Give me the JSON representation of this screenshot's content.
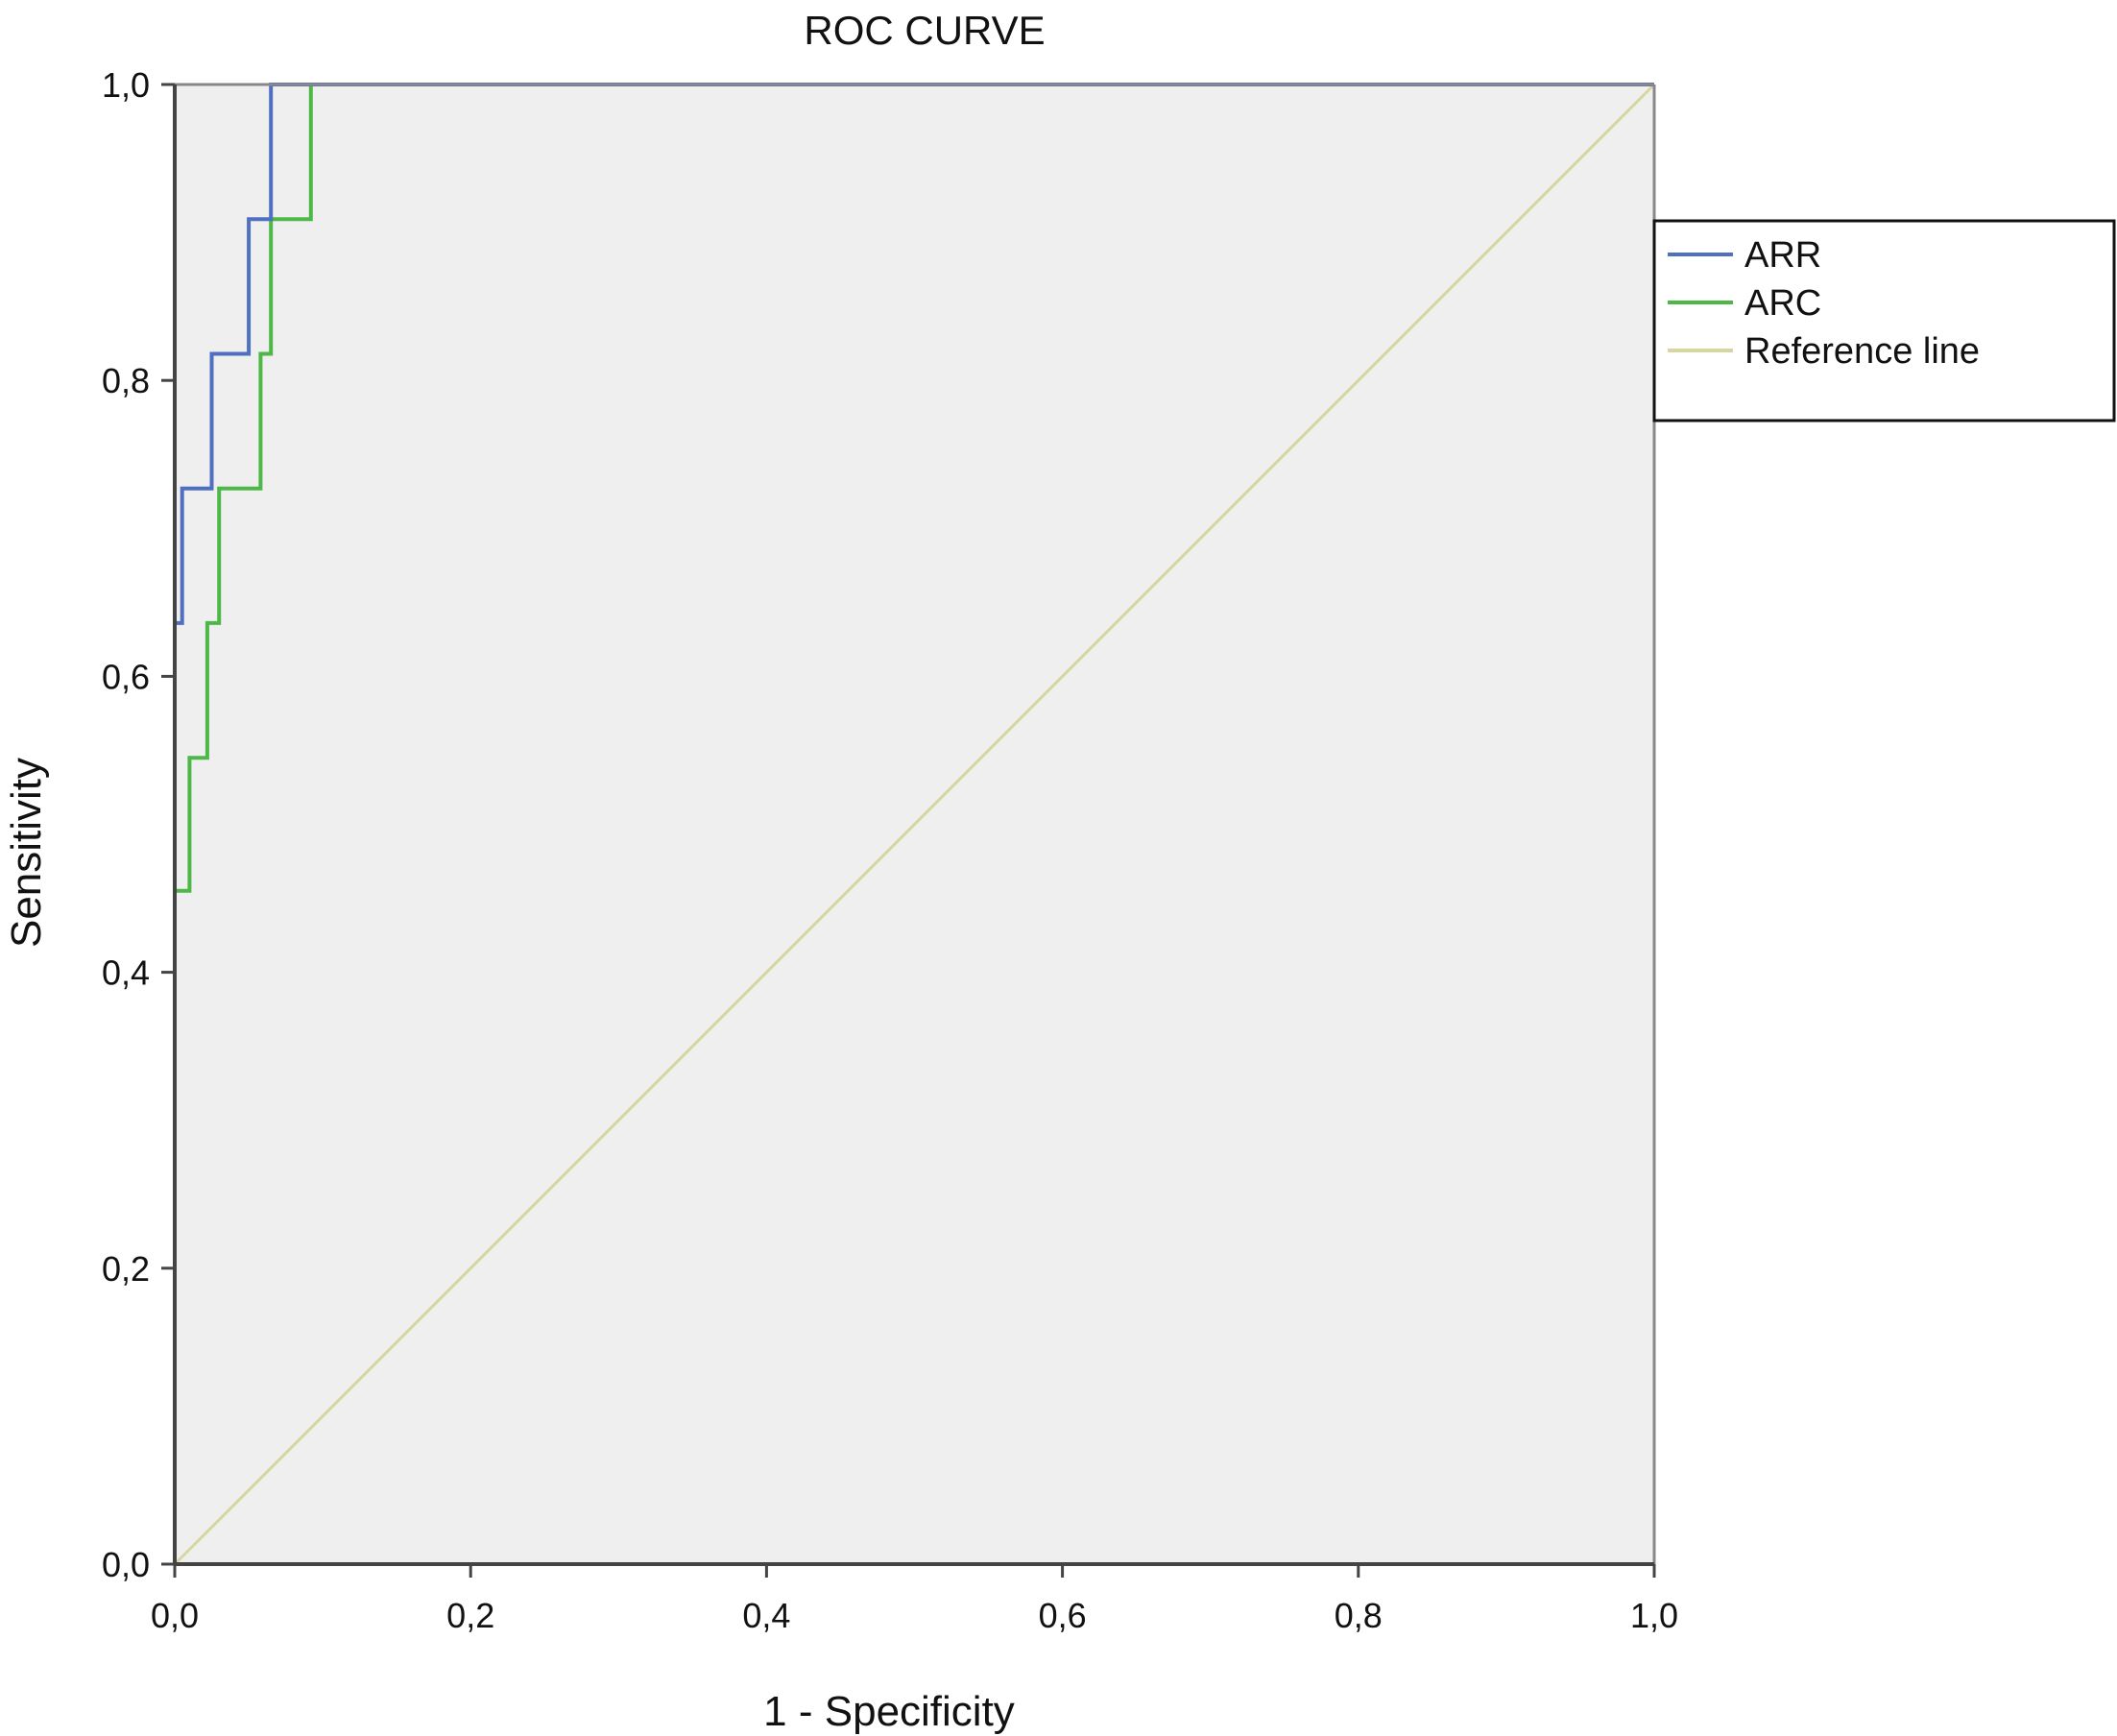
{
  "chart_data": {
    "type": "line",
    "title": "ROC CURVE",
    "xlabel": "1 - Specificity",
    "ylabel": "Sensitivity",
    "xlim": [
      0,
      1
    ],
    "ylim": [
      0,
      1
    ],
    "x_ticks": [
      "0,0",
      "0,2",
      "0,4",
      "0,6",
      "0,8",
      "1,0"
    ],
    "y_ticks": [
      "0,0",
      "0,2",
      "0,4",
      "0,6",
      "0,8",
      "1,0"
    ],
    "grid": false,
    "plot_background": "#efefef",
    "legend_position": "right",
    "series": [
      {
        "name": "ARR",
        "color": "#4f6fc0",
        "x": [
          0,
          0,
          0.005,
          0.005,
          0.025,
          0.025,
          0.05,
          0.05,
          0.065,
          0.065,
          1
        ],
        "y": [
          0,
          0.636,
          0.636,
          0.727,
          0.727,
          0.818,
          0.818,
          0.909,
          0.909,
          1.0,
          1.0
        ]
      },
      {
        "name": "ARC",
        "color": "#4db848",
        "x": [
          0,
          0,
          0.01,
          0.01,
          0.022,
          0.022,
          0.03,
          0.03,
          0.058,
          0.058,
          0.065,
          0.065,
          0.092,
          0.092,
          1
        ],
        "y": [
          0,
          0.455,
          0.455,
          0.545,
          0.545,
          0.636,
          0.636,
          0.727,
          0.727,
          0.818,
          0.818,
          0.909,
          0.909,
          1.0,
          1.0
        ]
      },
      {
        "name": "Reference line",
        "color": "#d8d6a0",
        "x": [
          0,
          1
        ],
        "y": [
          0,
          1
        ]
      }
    ]
  }
}
